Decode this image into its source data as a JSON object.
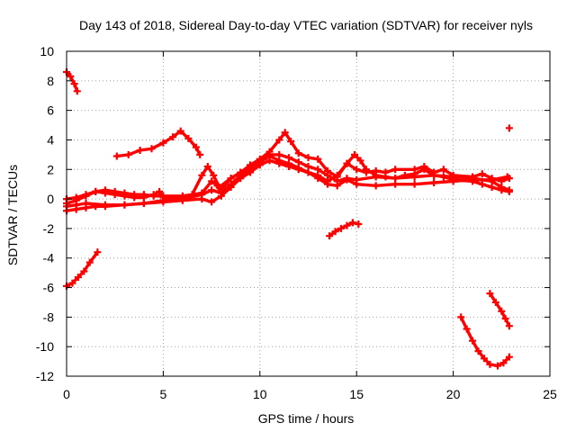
{
  "chart_data": {
    "type": "scatter",
    "title": "Day 143 of 2018, Sidereal Day-to-day VTEC variation (SDTVAR) for receiver nyls",
    "xlabel": "GPS time / hours",
    "ylabel": "SDTVAR / TECUs",
    "xlim": [
      0,
      25
    ],
    "ylim": [
      -12,
      10
    ],
    "xticks": [
      0,
      5,
      10,
      15,
      20,
      25
    ],
    "yticks": [
      -12,
      -10,
      -8,
      -6,
      -4,
      -2,
      0,
      2,
      4,
      6,
      8,
      10
    ],
    "grid": true,
    "legend": "none",
    "marker": "plus",
    "color": "#ff0000",
    "series": [
      {
        "name": "arc-top-left",
        "points": [
          [
            0.0,
            8.6
          ],
          [
            0.2,
            8.3
          ],
          [
            0.4,
            7.8
          ],
          [
            0.55,
            7.3
          ]
        ]
      },
      {
        "name": "arc-bottom-left",
        "points": [
          [
            0.0,
            -5.9
          ],
          [
            0.3,
            -5.7
          ],
          [
            0.6,
            -5.3
          ],
          [
            0.9,
            -4.9
          ],
          [
            1.2,
            -4.3
          ],
          [
            1.6,
            -3.6
          ]
        ]
      },
      {
        "name": "arc-hump-5h",
        "points": [
          [
            2.6,
            2.9
          ],
          [
            3.2,
            3.0
          ],
          [
            3.8,
            3.3
          ],
          [
            4.4,
            3.4
          ],
          [
            5.0,
            3.8
          ],
          [
            5.5,
            4.2
          ],
          [
            5.9,
            4.6
          ],
          [
            6.3,
            4.1
          ],
          [
            6.7,
            3.5
          ],
          [
            6.9,
            3.0
          ]
        ]
      },
      {
        "name": "baseline-a",
        "points": [
          [
            0.0,
            -0.8
          ],
          [
            0.5,
            -0.7
          ],
          [
            1.0,
            -0.6
          ],
          [
            1.5,
            -0.5
          ],
          [
            2.0,
            -0.5
          ],
          [
            3.0,
            -0.4
          ],
          [
            4.0,
            -0.3
          ],
          [
            5.0,
            -0.2
          ],
          [
            6.0,
            -0.1
          ],
          [
            7.0,
            0.0
          ],
          [
            7.5,
            -0.2
          ],
          [
            8.0,
            0.2
          ],
          [
            8.5,
            0.8
          ],
          [
            9.0,
            1.4
          ],
          [
            9.5,
            1.8
          ],
          [
            10.0,
            2.3
          ],
          [
            10.5,
            2.6
          ],
          [
            11.0,
            2.4
          ],
          [
            11.5,
            2.2
          ],
          [
            12.0,
            2.0
          ],
          [
            12.5,
            1.8
          ],
          [
            13.0,
            1.4
          ],
          [
            13.5,
            1.0
          ],
          [
            14.0,
            0.9
          ],
          [
            14.5,
            1.3
          ],
          [
            15.0,
            1.0
          ],
          [
            16.0,
            0.9
          ],
          [
            17.0,
            1.0
          ],
          [
            18.0,
            1.0
          ],
          [
            19.0,
            1.1
          ],
          [
            20.0,
            1.2
          ],
          [
            21.0,
            1.3
          ],
          [
            22.0,
            1.3
          ],
          [
            22.8,
            1.5
          ]
        ]
      },
      {
        "name": "baseline-b",
        "points": [
          [
            0.0,
            -0.3
          ],
          [
            0.5,
            -0.1
          ],
          [
            1.0,
            0.2
          ],
          [
            1.5,
            0.5
          ],
          [
            2.0,
            0.4
          ],
          [
            2.5,
            0.3
          ],
          [
            3.0,
            0.2
          ],
          [
            3.5,
            0.1
          ],
          [
            4.0,
            0.1
          ],
          [
            4.5,
            0.3
          ],
          [
            4.8,
            0.5
          ],
          [
            5.0,
            0.1
          ],
          [
            6.0,
            0.0
          ],
          [
            7.0,
            0.3
          ],
          [
            7.5,
            0.6
          ],
          [
            8.0,
            0.4
          ],
          [
            8.5,
            1.0
          ],
          [
            9.0,
            1.6
          ],
          [
            9.5,
            2.0
          ],
          [
            10.0,
            2.5
          ],
          [
            10.5,
            2.9
          ],
          [
            11.0,
            2.6
          ],
          [
            11.5,
            2.4
          ],
          [
            12.0,
            2.1
          ],
          [
            12.5,
            1.8
          ],
          [
            13.0,
            1.6
          ],
          [
            13.5,
            1.2
          ],
          [
            14.0,
            1.6
          ],
          [
            14.5,
            2.4
          ],
          [
            15.0,
            2.0
          ],
          [
            15.5,
            1.8
          ],
          [
            16.0,
            1.9
          ],
          [
            16.5,
            1.8
          ],
          [
            17.0,
            2.0
          ],
          [
            18.0,
            2.0
          ],
          [
            18.5,
            2.2
          ],
          [
            19.0,
            1.8
          ],
          [
            19.5,
            2.0
          ],
          [
            20.0,
            1.6
          ],
          [
            21.0,
            1.5
          ],
          [
            21.5,
            1.7
          ],
          [
            22.0,
            1.4
          ],
          [
            22.5,
            1.2
          ],
          [
            22.9,
            1.4
          ]
        ]
      },
      {
        "name": "baseline-c",
        "points": [
          [
            0.0,
            0.0
          ],
          [
            0.5,
            0.1
          ],
          [
            1.0,
            0.3
          ],
          [
            1.5,
            0.5
          ],
          [
            2.0,
            0.6
          ],
          [
            2.5,
            0.5
          ],
          [
            3.0,
            0.4
          ],
          [
            3.5,
            0.3
          ],
          [
            4.0,
            0.3
          ],
          [
            4.5,
            0.2
          ],
          [
            5.0,
            0.2
          ],
          [
            6.0,
            0.2
          ],
          [
            7.0,
            0.4
          ],
          [
            7.5,
            1.2
          ],
          [
            7.8,
            0.9
          ],
          [
            8.0,
            0.6
          ],
          [
            8.5,
            1.4
          ],
          [
            9.0,
            1.8
          ],
          [
            9.5,
            2.3
          ],
          [
            10.0,
            2.7
          ],
          [
            10.5,
            3.2
          ],
          [
            11.0,
            4.0
          ],
          [
            11.3,
            4.5
          ],
          [
            11.6,
            3.9
          ],
          [
            12.0,
            3.1
          ],
          [
            12.5,
            2.8
          ],
          [
            13.0,
            2.7
          ],
          [
            13.5,
            1.9
          ],
          [
            14.0,
            1.5
          ],
          [
            14.5,
            2.4
          ],
          [
            14.9,
            3.0
          ],
          [
            15.2,
            2.6
          ],
          [
            15.5,
            2.0
          ],
          [
            16.0,
            1.6
          ],
          [
            16.5,
            1.5
          ],
          [
            17.0,
            1.4
          ],
          [
            17.5,
            1.6
          ],
          [
            18.0,
            1.7
          ],
          [
            18.5,
            2.0
          ],
          [
            19.0,
            1.6
          ],
          [
            19.5,
            1.5
          ],
          [
            20.0,
            1.3
          ],
          [
            21.0,
            1.2
          ],
          [
            21.5,
            1.0
          ],
          [
            22.0,
            0.8
          ],
          [
            22.5,
            0.6
          ],
          [
            22.9,
            0.5
          ]
        ]
      },
      {
        "name": "baseline-d",
        "points": [
          [
            0.0,
            -0.5
          ],
          [
            0.5,
            -0.4
          ],
          [
            1.0,
            -0.3
          ],
          [
            2.0,
            -0.4
          ],
          [
            3.0,
            -0.4
          ],
          [
            4.0,
            -0.3
          ],
          [
            5.0,
            -0.1
          ],
          [
            6.0,
            0.0
          ],
          [
            6.5,
            0.3
          ],
          [
            7.0,
            1.6
          ],
          [
            7.3,
            2.2
          ],
          [
            7.6,
            1.6
          ],
          [
            7.9,
            0.8
          ],
          [
            8.5,
            1.4
          ],
          [
            9.0,
            1.8
          ],
          [
            10.0,
            2.5
          ],
          [
            10.5,
            3.0
          ],
          [
            11.0,
            3.0
          ],
          [
            11.5,
            2.8
          ],
          [
            12.0,
            2.5
          ],
          [
            12.5,
            2.2
          ],
          [
            13.0,
            2.0
          ],
          [
            13.5,
            1.6
          ],
          [
            14.0,
            1.2
          ],
          [
            14.5,
            1.4
          ],
          [
            15.0,
            1.3
          ],
          [
            16.0,
            1.5
          ],
          [
            17.0,
            1.4
          ],
          [
            18.0,
            1.5
          ],
          [
            19.0,
            1.6
          ],
          [
            20.0,
            1.5
          ],
          [
            21.0,
            1.4
          ],
          [
            22.0,
            1.2
          ],
          [
            22.5,
            0.8
          ],
          [
            22.9,
            0.6
          ]
        ]
      },
      {
        "name": "arc-14h",
        "points": [
          [
            13.6,
            -2.5
          ],
          [
            13.9,
            -2.2
          ],
          [
            14.2,
            -2.0
          ],
          [
            14.5,
            -1.8
          ],
          [
            14.8,
            -1.6
          ],
          [
            15.1,
            -1.7
          ]
        ]
      },
      {
        "name": "arc-bottom-right",
        "points": [
          [
            20.4,
            -8.0
          ],
          [
            20.7,
            -8.8
          ],
          [
            21.0,
            -9.6
          ],
          [
            21.3,
            -10.3
          ],
          [
            21.6,
            -10.8
          ],
          [
            21.9,
            -11.2
          ],
          [
            22.3,
            -11.3
          ],
          [
            22.6,
            -11.1
          ],
          [
            22.9,
            -10.7
          ]
        ]
      },
      {
        "name": "arc-right-down",
        "points": [
          [
            21.9,
            -6.4
          ],
          [
            22.2,
            -7.0
          ],
          [
            22.5,
            -7.6
          ],
          [
            22.7,
            -8.1
          ],
          [
            22.9,
            -8.6
          ]
        ]
      },
      {
        "name": "point-23h",
        "points": [
          [
            22.9,
            4.8
          ]
        ]
      }
    ]
  }
}
